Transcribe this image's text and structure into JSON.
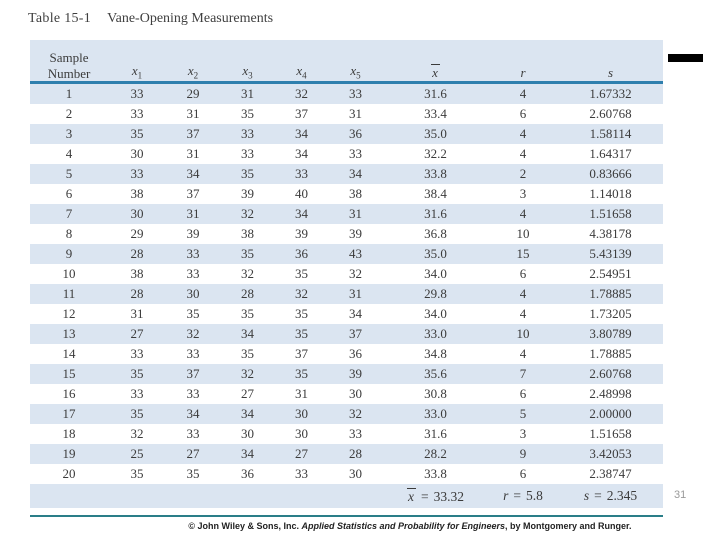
{
  "title": {
    "label": "Table 15-1",
    "caption": "Vane-Opening Measurements"
  },
  "table": {
    "header": {
      "sample_line1": "Sample",
      "sample_line2": "Number",
      "x_base": "x",
      "x_subs": [
        "1",
        "2",
        "3",
        "4",
        "5"
      ],
      "xbar": "x",
      "r": "r",
      "s": "s"
    },
    "rows": [
      [
        "1",
        "33",
        "29",
        "31",
        "32",
        "33",
        "31.6",
        "4",
        "1.67332"
      ],
      [
        "2",
        "33",
        "31",
        "35",
        "37",
        "31",
        "33.4",
        "6",
        "2.60768"
      ],
      [
        "3",
        "35",
        "37",
        "33",
        "34",
        "36",
        "35.0",
        "4",
        "1.58114"
      ],
      [
        "4",
        "30",
        "31",
        "33",
        "34",
        "33",
        "32.2",
        "4",
        "1.64317"
      ],
      [
        "5",
        "33",
        "34",
        "35",
        "33",
        "34",
        "33.8",
        "2",
        "0.83666"
      ],
      [
        "6",
        "38",
        "37",
        "39",
        "40",
        "38",
        "38.4",
        "3",
        "1.14018"
      ],
      [
        "7",
        "30",
        "31",
        "32",
        "34",
        "31",
        "31.6",
        "4",
        "1.51658"
      ],
      [
        "8",
        "29",
        "39",
        "38",
        "39",
        "39",
        "36.8",
        "10",
        "4.38178"
      ],
      [
        "9",
        "28",
        "33",
        "35",
        "36",
        "43",
        "35.0",
        "15",
        "5.43139"
      ],
      [
        "10",
        "38",
        "33",
        "32",
        "35",
        "32",
        "34.0",
        "6",
        "2.54951"
      ],
      [
        "11",
        "28",
        "30",
        "28",
        "32",
        "31",
        "29.8",
        "4",
        "1.78885"
      ],
      [
        "12",
        "31",
        "35",
        "35",
        "35",
        "34",
        "34.0",
        "4",
        "1.73205"
      ],
      [
        "13",
        "27",
        "32",
        "34",
        "35",
        "37",
        "33.0",
        "10",
        "3.80789"
      ],
      [
        "14",
        "33",
        "33",
        "35",
        "37",
        "36",
        "34.8",
        "4",
        "1.78885"
      ],
      [
        "15",
        "35",
        "37",
        "32",
        "35",
        "39",
        "35.6",
        "7",
        "2.60768"
      ],
      [
        "16",
        "33",
        "33",
        "27",
        "31",
        "30",
        "30.8",
        "6",
        "2.48998"
      ],
      [
        "17",
        "35",
        "34",
        "34",
        "30",
        "32",
        "33.0",
        "5",
        "2.00000"
      ],
      [
        "18",
        "32",
        "33",
        "30",
        "30",
        "33",
        "31.6",
        "3",
        "1.51658"
      ],
      [
        "19",
        "25",
        "27",
        "34",
        "27",
        "28",
        "28.2",
        "9",
        "3.42053"
      ],
      [
        "20",
        "35",
        "35",
        "36",
        "33",
        "30",
        "33.8",
        "6",
        "2.38747"
      ]
    ],
    "summary": {
      "xbar_label": "x",
      "xbar_value": "33.32",
      "r_label": "r",
      "r_value": "5.8",
      "s_label": "s",
      "s_value": "2.345",
      "eq": "="
    }
  },
  "slide": {
    "page_number": "31",
    "copyright_prefix": "© John Wiley & Sons, Inc. ",
    "copyright_book": "Applied Statistics and Probability for Engineers",
    "copyright_suffix": ", by Montgomery and Runger."
  },
  "colors": {
    "row_blue": "#dbe5f1",
    "header_line": "#2e7fae",
    "bottom_line": "#2a7e88",
    "dash": "#000000",
    "text": "#3b3b3b"
  }
}
